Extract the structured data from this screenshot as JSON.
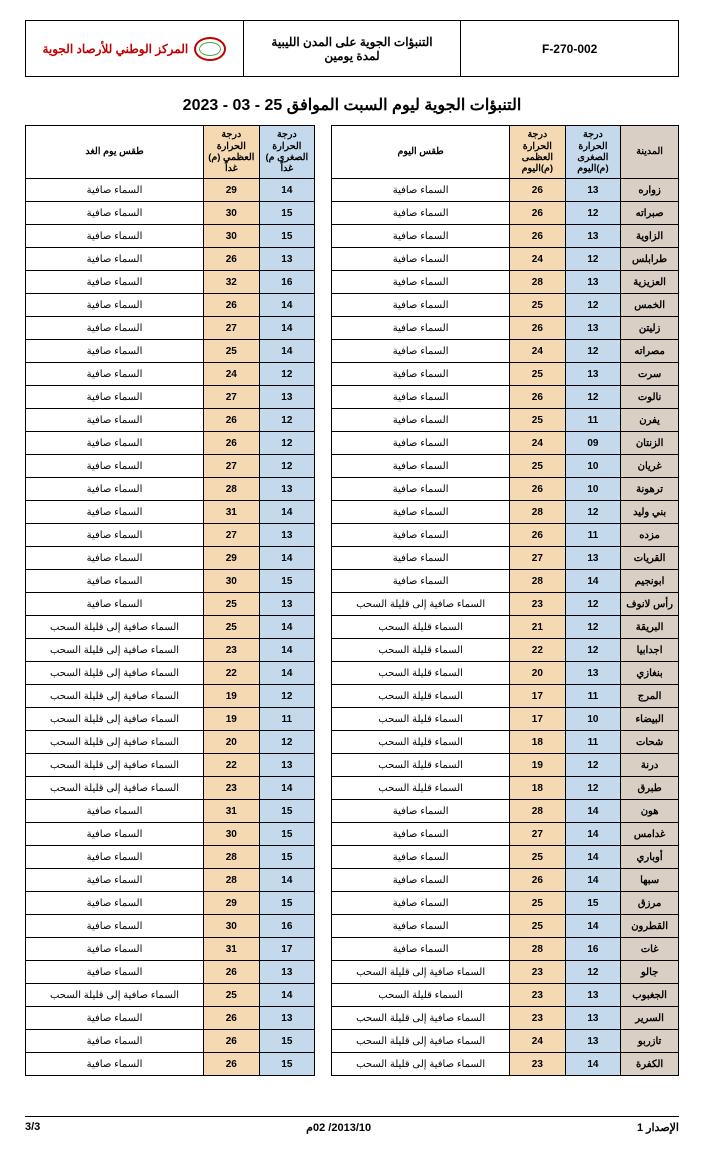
{
  "header": {
    "org_name": "المركز الوطني للأرصاد الجوية",
    "doc_title_l1": "التنبؤات الجوية على المدن الليبية",
    "doc_title_l2": "لمدة يومين",
    "doc_code": "F-270-002"
  },
  "main_title": "التنبؤات الجوية ليوم السبت الموافق 25 - 03 - 2023",
  "columns": {
    "city": "المدينة",
    "tmin_today": "درجة الحرارة الصغرى (م)اليوم",
    "tmax_today": "درجة الحرارة العظمى (م)اليوم",
    "weather_today": "طقس اليوم",
    "tmin_tomorrow": "درجة الحرارة الصغرى م) غداً",
    "tmax_tomorrow": "درجة الحرارة العظمى (م) غداً",
    "weather_tomorrow": "طقس يوم الغد"
  },
  "rows": [
    {
      "city": "زواره",
      "tmin1": "13",
      "tmax1": "26",
      "w1": "السماء صافية",
      "tmin2": "14",
      "tmax2": "29",
      "w2": "السماء صافية"
    },
    {
      "city": "صبراته",
      "tmin1": "12",
      "tmax1": "26",
      "w1": "السماء صافية",
      "tmin2": "15",
      "tmax2": "30",
      "w2": "السماء صافية"
    },
    {
      "city": "الزاوية",
      "tmin1": "13",
      "tmax1": "26",
      "w1": "السماء صافية",
      "tmin2": "15",
      "tmax2": "30",
      "w2": "السماء صافية"
    },
    {
      "city": "طرابلس",
      "tmin1": "12",
      "tmax1": "24",
      "w1": "السماء صافية",
      "tmin2": "13",
      "tmax2": "26",
      "w2": "السماء صافية"
    },
    {
      "city": "العزيزية",
      "tmin1": "13",
      "tmax1": "28",
      "w1": "السماء صافية",
      "tmin2": "16",
      "tmax2": "32",
      "w2": "السماء صافية"
    },
    {
      "city": "الخمس",
      "tmin1": "12",
      "tmax1": "25",
      "w1": "السماء صافية",
      "tmin2": "14",
      "tmax2": "26",
      "w2": "السماء صافية"
    },
    {
      "city": "زليتن",
      "tmin1": "13",
      "tmax1": "26",
      "w1": "السماء صافية",
      "tmin2": "14",
      "tmax2": "27",
      "w2": "السماء صافية"
    },
    {
      "city": "مصراته",
      "tmin1": "12",
      "tmax1": "24",
      "w1": "السماء صافية",
      "tmin2": "14",
      "tmax2": "25",
      "w2": "السماء صافية"
    },
    {
      "city": "سرت",
      "tmin1": "13",
      "tmax1": "25",
      "w1": "السماء صافية",
      "tmin2": "12",
      "tmax2": "24",
      "w2": "السماء صافية"
    },
    {
      "city": "نالوت",
      "tmin1": "12",
      "tmax1": "26",
      "w1": "السماء صافية",
      "tmin2": "13",
      "tmax2": "27",
      "w2": "السماء صافية"
    },
    {
      "city": "يفرن",
      "tmin1": "11",
      "tmax1": "25",
      "w1": "السماء صافية",
      "tmin2": "12",
      "tmax2": "26",
      "w2": "السماء صافية"
    },
    {
      "city": "الزنتان",
      "tmin1": "09",
      "tmax1": "24",
      "w1": "السماء صافية",
      "tmin2": "12",
      "tmax2": "26",
      "w2": "السماء صافية"
    },
    {
      "city": "غريان",
      "tmin1": "10",
      "tmax1": "25",
      "w1": "السماء صافية",
      "tmin2": "12",
      "tmax2": "27",
      "w2": "السماء صافية"
    },
    {
      "city": "ترهونة",
      "tmin1": "10",
      "tmax1": "26",
      "w1": "السماء صافية",
      "tmin2": "13",
      "tmax2": "28",
      "w2": "السماء صافية"
    },
    {
      "city": "بني وليد",
      "tmin1": "12",
      "tmax1": "28",
      "w1": "السماء صافية",
      "tmin2": "14",
      "tmax2": "31",
      "w2": "السماء صافية"
    },
    {
      "city": "مزده",
      "tmin1": "11",
      "tmax1": "26",
      "w1": "السماء صافية",
      "tmin2": "13",
      "tmax2": "27",
      "w2": "السماء صافية"
    },
    {
      "city": "القريات",
      "tmin1": "13",
      "tmax1": "27",
      "w1": "السماء صافية",
      "tmin2": "14",
      "tmax2": "29",
      "w2": "السماء صافية"
    },
    {
      "city": "ابونجيم",
      "tmin1": "14",
      "tmax1": "28",
      "w1": "السماء صافية",
      "tmin2": "15",
      "tmax2": "30",
      "w2": "السماء صافية"
    },
    {
      "city": "رأس لانوف",
      "tmin1": "12",
      "tmax1": "23",
      "w1": "السماء صافية إلى قليلة السحب",
      "tmin2": "13",
      "tmax2": "25",
      "w2": "السماء صافية"
    },
    {
      "city": "البريقة",
      "tmin1": "12",
      "tmax1": "21",
      "w1": "السماء قليلة السحب",
      "tmin2": "14",
      "tmax2": "25",
      "w2": "السماء صافية إلى قليلة السحب"
    },
    {
      "city": "اجدابيا",
      "tmin1": "12",
      "tmax1": "22",
      "w1": "السماء قليلة السحب",
      "tmin2": "14",
      "tmax2": "23",
      "w2": "السماء صافية إلى قليلة السحب"
    },
    {
      "city": "بنغازي",
      "tmin1": "13",
      "tmax1": "20",
      "w1": "السماء قليلة السحب",
      "tmin2": "14",
      "tmax2": "22",
      "w2": "السماء صافية إلى قليلة السحب"
    },
    {
      "city": "المرج",
      "tmin1": "11",
      "tmax1": "17",
      "w1": "السماء قليلة السحب",
      "tmin2": "12",
      "tmax2": "19",
      "w2": "السماء صافية إلى قليلة السحب"
    },
    {
      "city": "البيضاء",
      "tmin1": "10",
      "tmax1": "17",
      "w1": "السماء قليلة السحب",
      "tmin2": "11",
      "tmax2": "19",
      "w2": "السماء صافية إلى قليلة السحب"
    },
    {
      "city": "شحات",
      "tmin1": "11",
      "tmax1": "18",
      "w1": "السماء قليلة السحب",
      "tmin2": "12",
      "tmax2": "20",
      "w2": "السماء صافية إلى قليلة السحب"
    },
    {
      "city": "درنة",
      "tmin1": "12",
      "tmax1": "19",
      "w1": "السماء قليلة السحب",
      "tmin2": "13",
      "tmax2": "22",
      "w2": "السماء صافية إلى قليلة السحب"
    },
    {
      "city": "طبرق",
      "tmin1": "12",
      "tmax1": "18",
      "w1": "السماء قليلة السحب",
      "tmin2": "14",
      "tmax2": "23",
      "w2": "السماء صافية إلى قليلة السحب"
    },
    {
      "city": "هون",
      "tmin1": "14",
      "tmax1": "28",
      "w1": "السماء صافية",
      "tmin2": "15",
      "tmax2": "31",
      "w2": "السماء صافية"
    },
    {
      "city": "غدامس",
      "tmin1": "14",
      "tmax1": "27",
      "w1": "السماء صافية",
      "tmin2": "15",
      "tmax2": "30",
      "w2": "السماء صافية"
    },
    {
      "city": "أوباري",
      "tmin1": "14",
      "tmax1": "25",
      "w1": "السماء صافية",
      "tmin2": "15",
      "tmax2": "28",
      "w2": "السماء صافية"
    },
    {
      "city": "سبها",
      "tmin1": "14",
      "tmax1": "26",
      "w1": "السماء صافية",
      "tmin2": "14",
      "tmax2": "28",
      "w2": "السماء صافية"
    },
    {
      "city": "مرزق",
      "tmin1": "15",
      "tmax1": "25",
      "w1": "السماء صافية",
      "tmin2": "15",
      "tmax2": "29",
      "w2": "السماء صافية"
    },
    {
      "city": "القطرون",
      "tmin1": "14",
      "tmax1": "25",
      "w1": "السماء صافية",
      "tmin2": "16",
      "tmax2": "30",
      "w2": "السماء صافية"
    },
    {
      "city": "غات",
      "tmin1": "16",
      "tmax1": "28",
      "w1": "السماء صافية",
      "tmin2": "17",
      "tmax2": "31",
      "w2": "السماء صافية"
    },
    {
      "city": "جالو",
      "tmin1": "12",
      "tmax1": "23",
      "w1": "السماء صافية إلى قليلة السحب",
      "tmin2": "13",
      "tmax2": "26",
      "w2": "السماء صافية"
    },
    {
      "city": "الجغبوب",
      "tmin1": "13",
      "tmax1": "23",
      "w1": "السماء قليلة السحب",
      "tmin2": "14",
      "tmax2": "25",
      "w2": "السماء صافية إلى قليلة السحب"
    },
    {
      "city": "السرير",
      "tmin1": "13",
      "tmax1": "23",
      "w1": "السماء صافية إلى قليلة السحب",
      "tmin2": "13",
      "tmax2": "26",
      "w2": "السماء صافية"
    },
    {
      "city": "تازربو",
      "tmin1": "13",
      "tmax1": "24",
      "w1": "السماء صافية إلى قليلة السحب",
      "tmin2": "15",
      "tmax2": "26",
      "w2": "السماء صافية"
    },
    {
      "city": "الكفرة",
      "tmin1": "14",
      "tmax1": "23",
      "w1": "السماء صافية إلى قليلة السحب",
      "tmin2": "15",
      "tmax2": "26",
      "w2": "السماء صافية"
    }
  ],
  "footer": {
    "issue": "الإصدار 1",
    "date": "2013/10/ 02م",
    "page": "3/3"
  },
  "colors": {
    "city_bg": "#d9cfc5",
    "tmin_bg": "#c5d9ed",
    "tmax_bg": "#f4d9b3"
  }
}
